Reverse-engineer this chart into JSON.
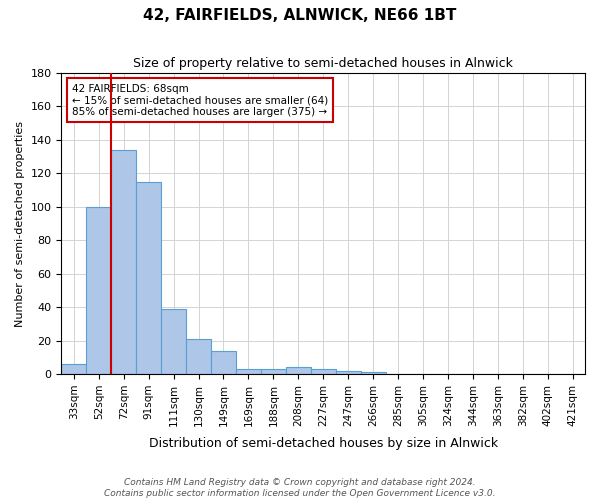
{
  "title": "42, FAIRFIELDS, ALNWICK, NE66 1BT",
  "subtitle": "Size of property relative to semi-detached houses in Alnwick",
  "xlabel": "Distribution of semi-detached houses by size in Alnwick",
  "ylabel": "Number of semi-detached properties",
  "footer_line1": "Contains HM Land Registry data © Crown copyright and database right 2024.",
  "footer_line2": "Contains public sector information licensed under the Open Government Licence v3.0.",
  "bins": [
    "33sqm",
    "52sqm",
    "72sqm",
    "91sqm",
    "111sqm",
    "130sqm",
    "149sqm",
    "169sqm",
    "188sqm",
    "208sqm",
    "227sqm",
    "247sqm",
    "266sqm",
    "285sqm",
    "305sqm",
    "324sqm",
    "344sqm",
    "363sqm",
    "382sqm",
    "402sqm",
    "421sqm"
  ],
  "values": [
    6,
    100,
    134,
    115,
    39,
    21,
    14,
    3,
    3,
    4,
    3,
    2,
    1,
    0,
    0,
    0,
    0,
    0,
    0,
    0,
    0
  ],
  "ylim": [
    0,
    180
  ],
  "yticks": [
    0,
    20,
    40,
    60,
    80,
    100,
    120,
    140,
    160,
    180
  ],
  "property_bin_index": 2,
  "bar_color": "#aec6e8",
  "bar_edge_color": "#5a9fd4",
  "highlight_color": "#cc0000",
  "annotation_text": "42 FAIRFIELDS: 68sqm\n← 15% of semi-detached houses are smaller (64)\n85% of semi-detached houses are larger (375) →",
  "annotation_box_color": "#ffffff",
  "annotation_box_edge": "#cc0000"
}
